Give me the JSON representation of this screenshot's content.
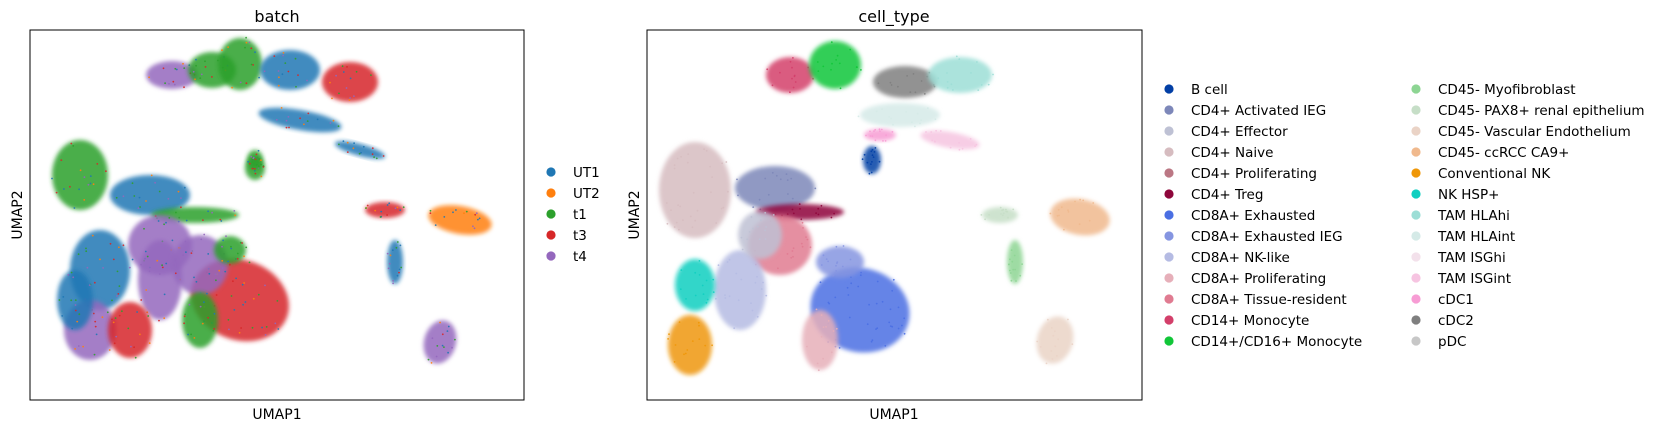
{
  "chart_data": [
    {
      "type": "scatter",
      "title": "batch",
      "xlabel": "UMAP1",
      "ylabel": "UMAP2",
      "grid": false,
      "legend": "right",
      "series": [
        {
          "name": "UT1",
          "color": "#1f77b4"
        },
        {
          "name": "UT2",
          "color": "#ff7f0e"
        },
        {
          "name": "t1",
          "color": "#2ca02c"
        },
        {
          "name": "t3",
          "color": "#d62728"
        },
        {
          "name": "t4",
          "color": "#9467bd"
        }
      ]
    },
    {
      "type": "scatter",
      "title": "cell_type",
      "xlabel": "UMAP1",
      "ylabel": "UMAP2",
      "grid": false,
      "legend": "right",
      "series": [
        {
          "name": "B cell",
          "color": "#023fa5"
        },
        {
          "name": "CD4+ Activated IEG",
          "color": "#7d87b9"
        },
        {
          "name": "CD4+ Effector",
          "color": "#bec1d4"
        },
        {
          "name": "CD4+ Naive",
          "color": "#d6bcc0"
        },
        {
          "name": "CD4+ Proliferating",
          "color": "#bb7784"
        },
        {
          "name": "CD4+ Treg",
          "color": "#8e063b"
        },
        {
          "name": "CD8A+ Exhausted",
          "color": "#4a6fe3"
        },
        {
          "name": "CD8A+ Exhausted IEG",
          "color": "#8595e1"
        },
        {
          "name": "CD8A+ NK-like",
          "color": "#b5bbe3"
        },
        {
          "name": "CD8A+ Proliferating",
          "color": "#e6afb9"
        },
        {
          "name": "CD8A+ Tissue-resident",
          "color": "#e07b91"
        },
        {
          "name": "CD14+ Monocyte",
          "color": "#d33f6a"
        },
        {
          "name": "CD14+/CD16+ Monocyte",
          "color": "#11c638"
        },
        {
          "name": "CD45- Myofibroblast",
          "color": "#8dd593"
        },
        {
          "name": "CD45- PAX8+ renal epithelium",
          "color": "#c6dec7"
        },
        {
          "name": "CD45- Vascular Endothelium",
          "color": "#ead3c6"
        },
        {
          "name": "CD45- ccRCC CA9+",
          "color": "#f0b98d"
        },
        {
          "name": "Conventional NK",
          "color": "#ef9708"
        },
        {
          "name": "NK HSP+",
          "color": "#0fcfc0"
        },
        {
          "name": "TAM HLAhi",
          "color": "#9cded6"
        },
        {
          "name": "TAM HLAint",
          "color": "#d5eae7"
        },
        {
          "name": "TAM ISGhi",
          "color": "#f3e1eb"
        },
        {
          "name": "TAM ISGint",
          "color": "#f6c4e1"
        },
        {
          "name": "cDC1",
          "color": "#f79cd4"
        },
        {
          "name": "cDC2",
          "color": "#7f7f7f"
        },
        {
          "name": "pDC",
          "color": "#c7c7c7"
        }
      ]
    }
  ]
}
